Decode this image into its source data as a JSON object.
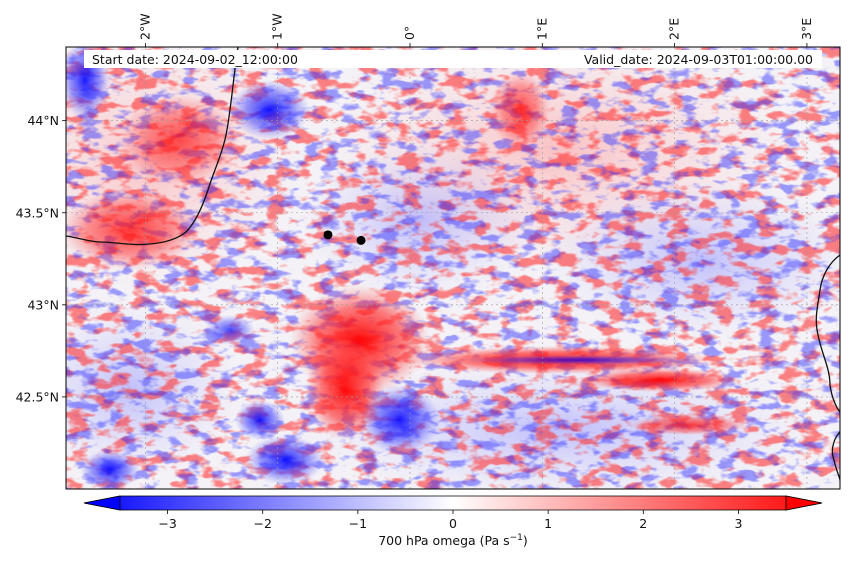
{
  "chart_data": {
    "type": "heatmap",
    "title": "",
    "annotations": {
      "start_date": "Start date: 2024-09-02_12:00:00",
      "valid_date": "Valid_date: 2024-09-03T01:00:00.00"
    },
    "x_axis": {
      "position": "top",
      "range_deg": [
        -2.6,
        3.25
      ],
      "ticks": [
        {
          "value": -2,
          "label": "2°W"
        },
        {
          "value": -1,
          "label": "1°W"
        },
        {
          "value": 0,
          "label": "0°"
        },
        {
          "value": 1,
          "label": "1°E"
        },
        {
          "value": 2,
          "label": "2°E"
        },
        {
          "value": 3,
          "label": "3°E"
        }
      ]
    },
    "y_axis": {
      "position": "left",
      "range_deg": [
        42.0,
        44.4
      ],
      "ticks": [
        {
          "value": 44.0,
          "label": "44°N"
        },
        {
          "value": 43.5,
          "label": "43.5°N"
        },
        {
          "value": 43.0,
          "label": "43°N"
        },
        {
          "value": 42.5,
          "label": "42.5°N"
        }
      ]
    },
    "grid": true,
    "points": [
      {
        "lon": -0.62,
        "lat": 43.38
      },
      {
        "lon": -0.37,
        "lat": 43.35
      }
    ],
    "colorbar": {
      "label_main": "700 hPa omega (Pa s",
      "label_sup": "−1",
      "label_end": ")",
      "range": [
        -3.5,
        3.5
      ],
      "ticks": [
        {
          "value": -3,
          "label": "−3"
        },
        {
          "value": -2,
          "label": "−2"
        },
        {
          "value": -1,
          "label": "−1"
        },
        {
          "value": 0,
          "label": "0"
        },
        {
          "value": 1,
          "label": "1"
        },
        {
          "value": 2,
          "label": "2"
        },
        {
          "value": 3,
          "label": "3"
        }
      ],
      "cmap": [
        "#0000ff",
        "#ffffff",
        "#ff0000"
      ],
      "extend": "both"
    }
  }
}
